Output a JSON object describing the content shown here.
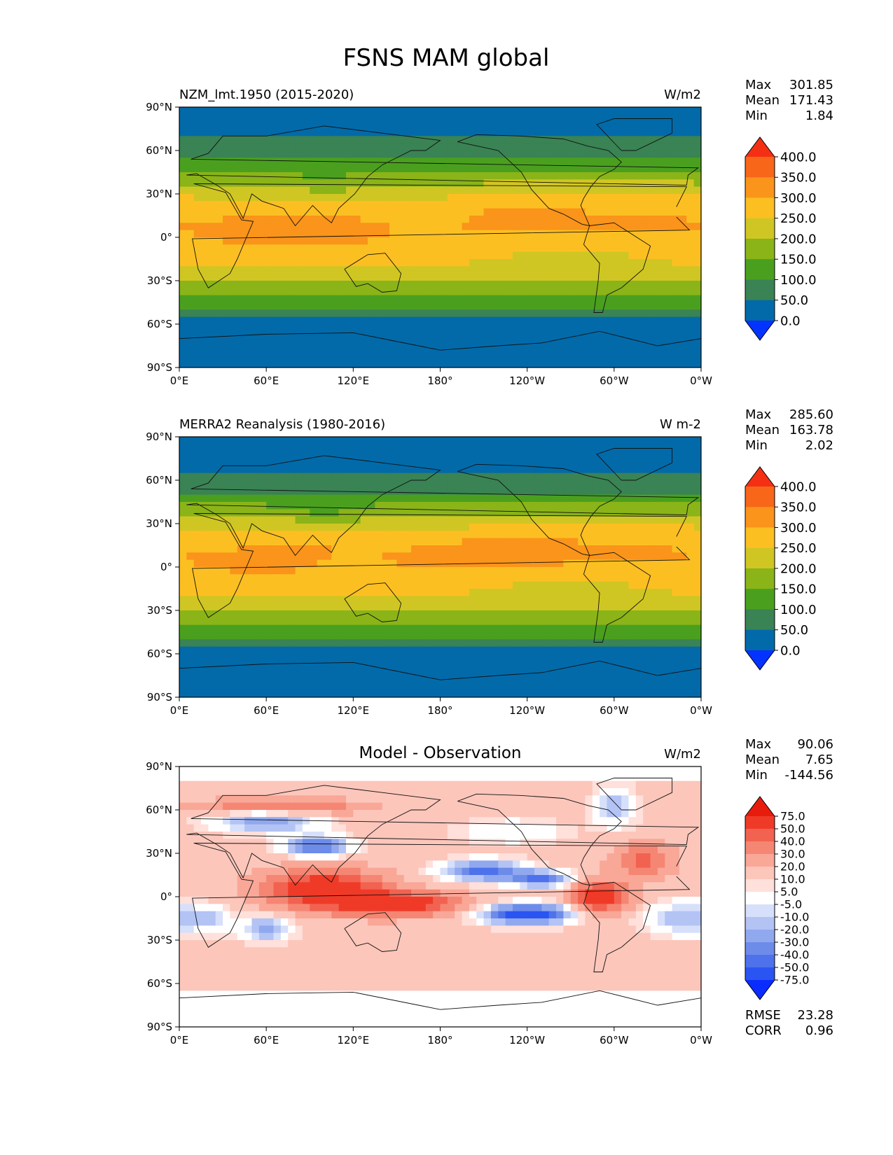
{
  "figure": {
    "title": "FSNS MAM global"
  },
  "axes": {
    "lat_ticks": [
      "90°N",
      "60°N",
      "30°N",
      "0°",
      "30°S",
      "60°S",
      "90°S"
    ],
    "lon_ticks": [
      "0°E",
      "60°E",
      "120°E",
      "180°",
      "120°W",
      "60°W",
      "0°W"
    ]
  },
  "chart_data": [
    {
      "type": "heatmap",
      "id": "model",
      "title": "NZM_lmt.1950 (2015-2020)",
      "units": "W/m2",
      "stats": [
        {
          "label": "Max",
          "value": "301.85"
        },
        {
          "label": "Mean",
          "value": "171.43"
        },
        {
          "label": "Min",
          "value": "1.84"
        }
      ],
      "colorbar": {
        "levels": [
          0.0,
          50.0,
          100.0,
          150.0,
          200.0,
          250.0,
          300.0,
          350.0,
          400.0
        ],
        "tick_labels": [
          "0.0",
          "50.0",
          "100.0",
          "150.0",
          "200.0",
          "250.0",
          "300.0",
          "350.0",
          "400.0"
        ],
        "colors": [
          "#0433ff",
          "#026aa9",
          "#3a8354",
          "#4aa01e",
          "#8ab418",
          "#d0c623",
          "#fcbf22",
          "#fa941a",
          "#f8661a",
          "#f52f14"
        ]
      },
      "xlim": [
        0,
        360
      ],
      "ylim": [
        -90,
        90
      ]
    },
    {
      "type": "heatmap",
      "id": "obs",
      "title": "MERRA2 Reanalysis (1980-2016)",
      "units": "W m-2",
      "stats": [
        {
          "label": "Max",
          "value": "285.60"
        },
        {
          "label": "Mean",
          "value": "163.78"
        },
        {
          "label": "Min",
          "value": "2.02"
        }
      ],
      "colorbar": {
        "levels": [
          0.0,
          50.0,
          100.0,
          150.0,
          200.0,
          250.0,
          300.0,
          350.0,
          400.0
        ],
        "tick_labels": [
          "0.0",
          "50.0",
          "100.0",
          "150.0",
          "200.0",
          "250.0",
          "300.0",
          "350.0",
          "400.0"
        ],
        "colors": [
          "#0433ff",
          "#026aa9",
          "#3a8354",
          "#4aa01e",
          "#8ab418",
          "#d0c623",
          "#fcbf22",
          "#fa941a",
          "#f8661a",
          "#f52f14"
        ]
      },
      "xlim": [
        0,
        360
      ],
      "ylim": [
        -90,
        90
      ]
    },
    {
      "type": "heatmap",
      "id": "diff",
      "title": "Model - Observation",
      "units": "W/m2",
      "stats": [
        {
          "label": "Max",
          "value": "90.06"
        },
        {
          "label": "Mean",
          "value": "7.65"
        },
        {
          "label": "Min",
          "value": "-144.56"
        }
      ],
      "extra_stats": [
        {
          "label": "RMSE",
          "value": "23.28"
        },
        {
          "label": "CORR",
          "value": "0.96"
        }
      ],
      "colorbar": {
        "levels": [
          -75.0,
          -50.0,
          -40.0,
          -30.0,
          -20.0,
          -10.0,
          -5.0,
          5.0,
          10.0,
          20.0,
          30.0,
          40.0,
          50.0,
          75.0
        ],
        "tick_labels": [
          "-75.0",
          "-50.0",
          "-40.0",
          "-30.0",
          "-20.0",
          "-10.0",
          "-5.0",
          "5.0",
          "10.0",
          "20.0",
          "30.0",
          "40.0",
          "50.0",
          "75.0"
        ],
        "colors": [
          "#0a2cff",
          "#2a55f2",
          "#4e72ec",
          "#6d8ce9",
          "#90a8ee",
          "#b3c3f4",
          "#d7e0fa",
          "#ffffff",
          "#ffe0da",
          "#fcc6bb",
          "#f9a797",
          "#f58673",
          "#f26250",
          "#f03a28",
          "#e81c0c"
        ]
      },
      "xlim": [
        0,
        360
      ],
      "ylim": [
        -90,
        90
      ]
    }
  ]
}
